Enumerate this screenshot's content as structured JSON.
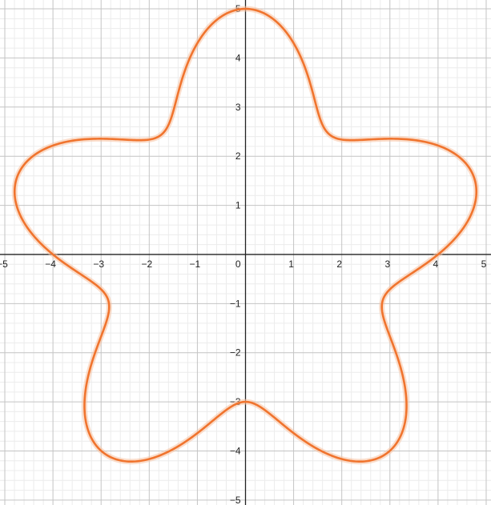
{
  "chart_data": {
    "type": "line",
    "title": "",
    "xlabel": "",
    "ylabel": "",
    "xlim": [
      -5.1,
      5.1
    ],
    "ylim": [
      -5.1,
      5.18
    ],
    "grid": true,
    "minor_grid": true,
    "x_ticks": [
      -5,
      -4,
      -3,
      -2,
      -1,
      0,
      1,
      2,
      3,
      4,
      5
    ],
    "y_ticks": [
      -5,
      -4,
      -3,
      -2,
      -1,
      1,
      2,
      3,
      4,
      5
    ],
    "tick_labels_x": [
      "−5",
      "−4",
      "−3",
      "−2",
      "−1",
      "0",
      "1",
      "2",
      "3",
      "4",
      "5"
    ],
    "tick_labels_y": [
      "−5",
      "−4",
      "−3",
      "−2",
      "−1",
      "1",
      "2",
      "3",
      "4",
      "5"
    ],
    "series": [
      {
        "curve": "polar",
        "r_formula": "4 + cos(5*theta)",
        "r_base": 4,
        "r_amplitude": 1,
        "petals": 5,
        "angle_offset_deg": 90,
        "color": "#f0742e",
        "glow_color": "#f7c3a3",
        "sample_points": [
          {
            "x": 0,
            "y": 5
          },
          {
            "x": 4.76,
            "y": 1.55
          },
          {
            "x": 2.94,
            "y": -4.05
          },
          {
            "x": -2.94,
            "y": -4.05
          },
          {
            "x": -4.76,
            "y": 1.55
          },
          {
            "x": 1.76,
            "y": 2.43
          },
          {
            "x": 2.85,
            "y": -0.93
          },
          {
            "x": 0,
            "y": -3
          },
          {
            "x": -2.85,
            "y": -0.93
          },
          {
            "x": -1.76,
            "y": 2.43
          }
        ]
      }
    ],
    "colors": {
      "minor_grid": "#ececec",
      "major_grid": "#c4c4c4",
      "axis": "#222222"
    }
  }
}
